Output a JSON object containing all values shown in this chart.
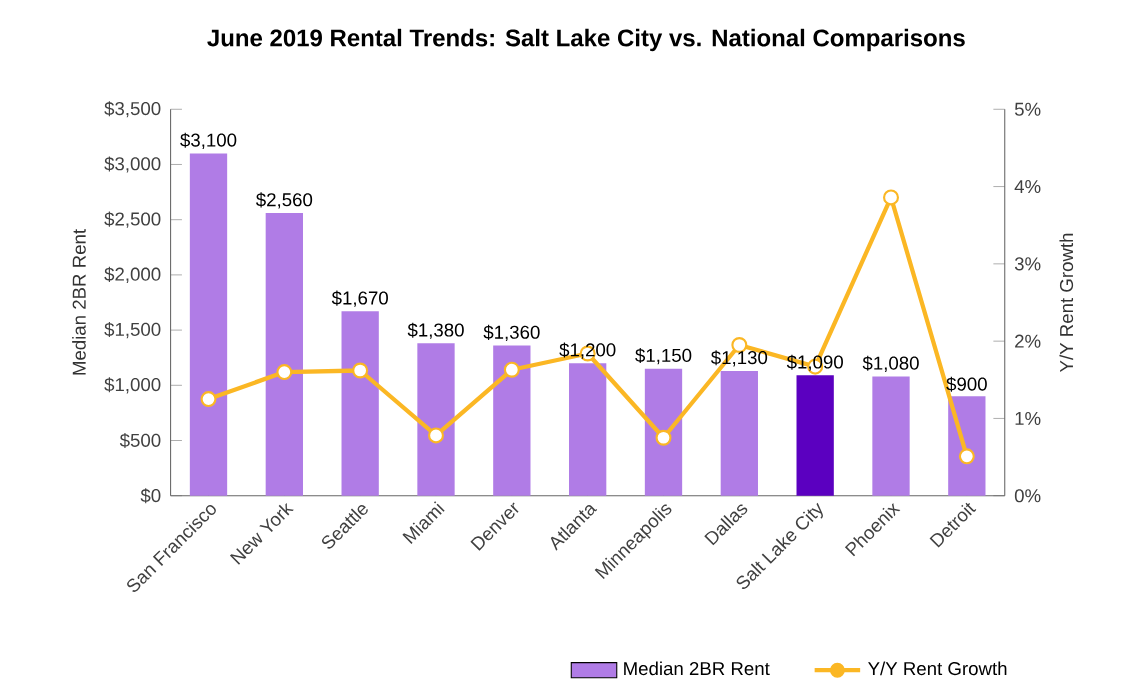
{
  "chart_data": {
    "type": "bar",
    "title": "June 2019 Rental Trends: Salt Lake City vs. National Comparisons",
    "categories": [
      "San Francisco",
      "New York",
      "Seattle",
      "Miami",
      "Denver",
      "Atlanta",
      "Minneapolis",
      "Dallas",
      "Salt Lake City",
      "Phoenix",
      "Detroit"
    ],
    "ylabel": "Median 2BR Rent",
    "y2label": "Y/Y Rent Growth",
    "ylim": [
      0,
      3500
    ],
    "yticks": [
      {
        "value": 0,
        "label": "$0"
      },
      {
        "value": 500,
        "label": "$500"
      },
      {
        "value": 1000,
        "label": "$1,000"
      },
      {
        "value": 1500,
        "label": "$1,500"
      },
      {
        "value": 2000,
        "label": "$2,000"
      },
      {
        "value": 2500,
        "label": "$2,500"
      },
      {
        "value": 3000,
        "label": "$3,000"
      },
      {
        "value": 3500,
        "label": "$3,500"
      }
    ],
    "y2lim": [
      0,
      5
    ],
    "y2ticks": [
      {
        "value": 0,
        "label": "0%"
      },
      {
        "value": 1,
        "label": "1%"
      },
      {
        "value": 2,
        "label": "2%"
      },
      {
        "value": 3,
        "label": "3%"
      },
      {
        "value": 4,
        "label": "4%"
      },
      {
        "value": 5,
        "label": "5%"
      }
    ],
    "series": [
      {
        "name": "Median 2BR Rent",
        "color": "#b07ce6",
        "colors": [
          "#b07ce6",
          "#b07ce6",
          "#b07ce6",
          "#b07ce6",
          "#b07ce6",
          "#b07ce6",
          "#b07ce6",
          "#b07ce6",
          "#5b00c0",
          "#b07ce6",
          "#b07ce6"
        ],
        "values": [
          3100,
          2560,
          1670,
          1380,
          1360,
          1200,
          1150,
          1130,
          1090,
          1080,
          900
        ],
        "value_labels": [
          "$3,100",
          "$2,560",
          "$1,670",
          "$1,380",
          "$1,360",
          "$1,200",
          "$1,150",
          "$1,130",
          "$1,090",
          "$1,080",
          "$900"
        ]
      },
      {
        "name": "Y/Y Rent Growth",
        "type": "line",
        "axis": "y2",
        "color": "#fbb724",
        "marker": "circle",
        "values": [
          1.25,
          1.6,
          1.62,
          0.78,
          1.63,
          1.84,
          0.75,
          1.95,
          1.67,
          3.86,
          0.51
        ]
      }
    ],
    "grid": false,
    "legend": "bottom right"
  }
}
